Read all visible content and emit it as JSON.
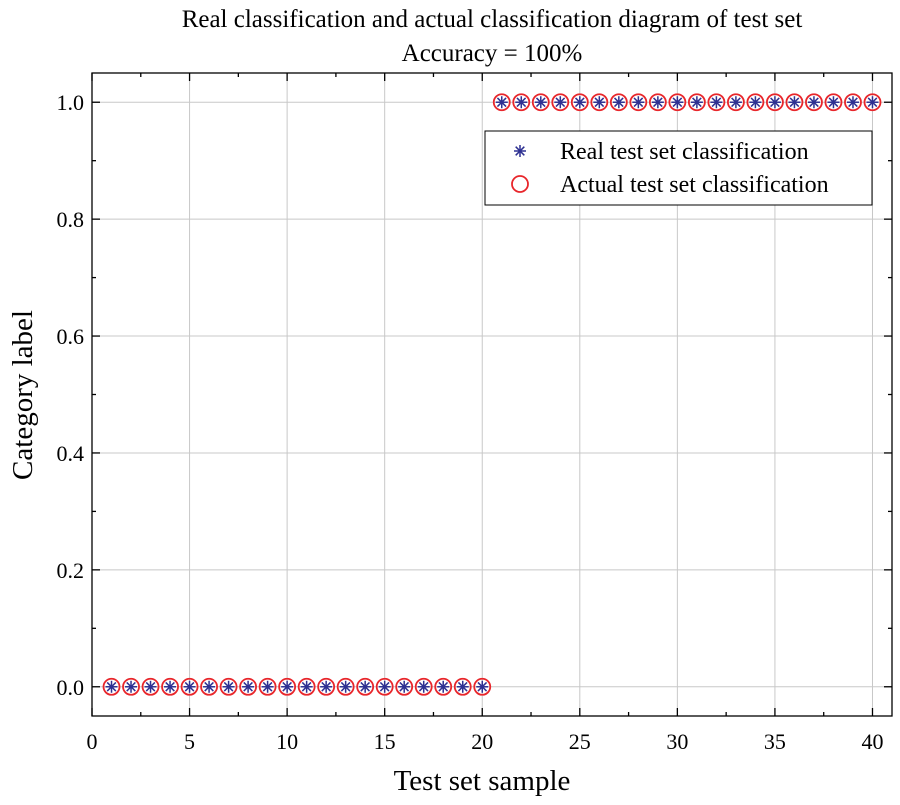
{
  "chart_data": {
    "type": "scatter",
    "title": "Real classification and actual classification diagram of test set",
    "subtitle": "Accuracy = 100%",
    "xlabel": "Test set sample",
    "ylabel": "Category label",
    "xlim": [
      0,
      41
    ],
    "ylim": [
      -0.05,
      1.05
    ],
    "xticks": [
      0,
      5,
      10,
      15,
      20,
      25,
      30,
      35,
      40
    ],
    "yticks": [
      0.0,
      0.2,
      0.4,
      0.6,
      0.8,
      1.0
    ],
    "xtick_labels": [
      "0",
      "5",
      "10",
      "15",
      "20",
      "25",
      "30",
      "35",
      "40"
    ],
    "ytick_labels": [
      "0.0",
      "0.2",
      "0.4",
      "0.6",
      "0.8",
      "1.0"
    ],
    "grid": true,
    "legend_position": "top-right",
    "x": [
      1,
      2,
      3,
      4,
      5,
      6,
      7,
      8,
      9,
      10,
      11,
      12,
      13,
      14,
      15,
      16,
      17,
      18,
      19,
      20,
      21,
      22,
      23,
      24,
      25,
      26,
      27,
      28,
      29,
      30,
      31,
      32,
      33,
      34,
      35,
      36,
      37,
      38,
      39,
      40
    ],
    "series": [
      {
        "name": "Real test set classification",
        "marker": "asterisk",
        "color": "#2e3192",
        "values": [
          0,
          0,
          0,
          0,
          0,
          0,
          0,
          0,
          0,
          0,
          0,
          0,
          0,
          0,
          0,
          0,
          0,
          0,
          0,
          0,
          1,
          1,
          1,
          1,
          1,
          1,
          1,
          1,
          1,
          1,
          1,
          1,
          1,
          1,
          1,
          1,
          1,
          1,
          1,
          1
        ]
      },
      {
        "name": "Actual test set classification",
        "marker": "circle",
        "color": "#e8262b",
        "values": [
          0,
          0,
          0,
          0,
          0,
          0,
          0,
          0,
          0,
          0,
          0,
          0,
          0,
          0,
          0,
          0,
          0,
          0,
          0,
          0,
          1,
          1,
          1,
          1,
          1,
          1,
          1,
          1,
          1,
          1,
          1,
          1,
          1,
          1,
          1,
          1,
          1,
          1,
          1,
          1
        ]
      }
    ]
  }
}
